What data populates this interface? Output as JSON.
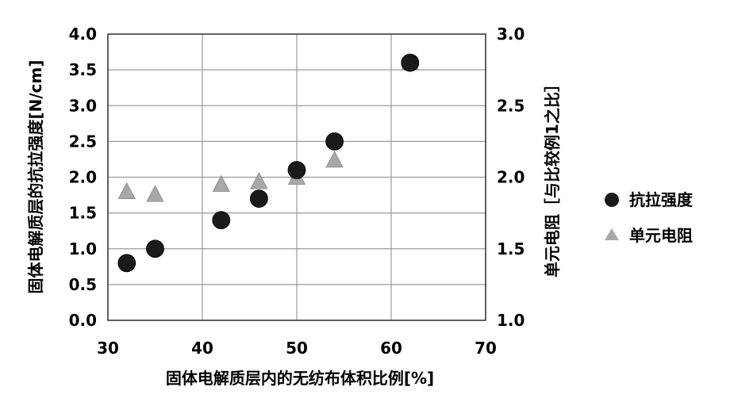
{
  "chart_data": {
    "type": "scatter",
    "xlabel": "固体电解质层内的无纺布体积比例[%]",
    "ylabel_left": "固体电解质层的抗拉强度[N/cm]",
    "ylabel_right": "单元电阻［与比较例1之比］",
    "xlim": [
      30,
      70
    ],
    "ylim_left": [
      0.0,
      4.0
    ],
    "ylim_right": [
      1.0,
      3.0
    ],
    "x_ticks": [
      "30",
      "40",
      "50",
      "60",
      "70"
    ],
    "y_left_ticks": [
      "0.0",
      "0.5",
      "1.0",
      "1.5",
      "2.0",
      "2.5",
      "3.0",
      "3.5",
      "4.0"
    ],
    "y_right_ticks": [
      "1.0",
      "1.5",
      "2.0",
      "2.5",
      "3.0"
    ],
    "grid": true,
    "legend_position": "right",
    "series": [
      {
        "name": "抗拉强度",
        "axis": "left",
        "marker": "circle",
        "color": "#1a1a1a",
        "x": [
          32,
          35,
          42,
          46,
          50,
          54,
          62
        ],
        "y": [
          0.8,
          1.0,
          1.4,
          1.7,
          2.1,
          2.5,
          3.6
        ]
      },
      {
        "name": "单元电阻",
        "axis": "right",
        "marker": "triangle",
        "color": "#a8a8a8",
        "x": [
          32,
          35,
          42,
          46,
          50,
          54,
          62
        ],
        "y": [
          1.9,
          1.88,
          1.95,
          1.97,
          2.0,
          2.12,
          2.8
        ]
      }
    ]
  }
}
